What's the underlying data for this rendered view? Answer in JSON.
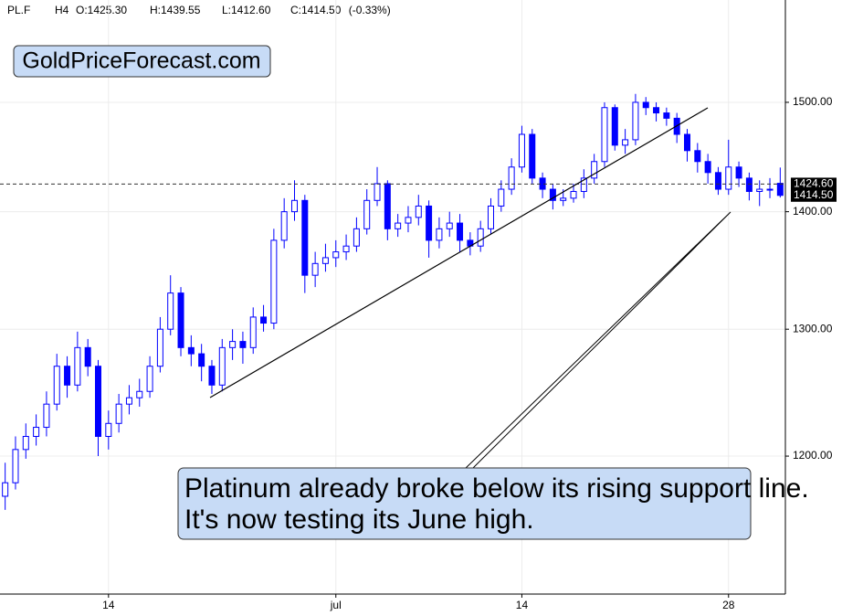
{
  "header": {
    "symbol": "PL.F",
    "timeframe": "H4",
    "open": "O:1425.30",
    "high": "H:1439.55",
    "low": "L:1412.60",
    "close": "C:1414.50",
    "change": "(-0.33%)"
  },
  "chart_data": {
    "type": "candlestick",
    "title": "GoldPriceForecast.com",
    "annotation": "Platinum already broke below its rising support line. It's now testing its June high.",
    "categories": [
      null,
      null,
      null,
      null,
      null,
      null,
      null,
      null,
      null,
      null,
      "14",
      null,
      null,
      null,
      null,
      null,
      null,
      null,
      null,
      null,
      null,
      null,
      null,
      null,
      null,
      null,
      null,
      null,
      null,
      null,
      null,
      null,
      "jul",
      null,
      null,
      null,
      null,
      null,
      null,
      null,
      null,
      null,
      null,
      null,
      null,
      null,
      null,
      null,
      null,
      null,
      "14",
      null,
      null,
      null,
      null,
      null,
      null,
      null,
      null,
      null,
      null,
      null,
      null,
      null,
      null,
      null,
      null,
      null,
      null,
      null,
      "28",
      null,
      null,
      null,
      null,
      null
    ],
    "open": [
      1170,
      1180,
      1205,
      1215,
      1222,
      1240,
      1270,
      1255,
      1285,
      1270,
      1215,
      1225,
      1240,
      1245,
      1250,
      1270,
      1300,
      1330,
      1285,
      1280,
      1270,
      1255,
      1285,
      1290,
      1285,
      1310,
      1305,
      1375,
      1400,
      1410,
      1345,
      1355,
      1360,
      1365,
      1370,
      1385,
      1410,
      1425,
      1385,
      1390,
      1395,
      1405,
      1375,
      1385,
      1390,
      1375,
      1370,
      1385,
      1405,
      1420,
      1440,
      1470,
      1430,
      1420,
      1410,
      1412,
      1418,
      1430,
      1445,
      1495,
      1460,
      1465,
      1500,
      1495,
      1490,
      1485,
      1470,
      1455,
      1445,
      1435,
      1420,
      1440,
      1430,
      1418,
      1420,
      1425.3
    ],
    "high": [
      1195,
      1215,
      1225,
      1232,
      1250,
      1280,
      1278,
      1298,
      1292,
      1275,
      1235,
      1248,
      1255,
      1260,
      1278,
      1310,
      1345,
      1335,
      1295,
      1288,
      1275,
      1292,
      1300,
      1298,
      1318,
      1320,
      1385,
      1412,
      1428,
      1415,
      1365,
      1372,
      1375,
      1380,
      1395,
      1420,
      1440,
      1428,
      1398,
      1405,
      1415,
      1410,
      1395,
      1400,
      1398,
      1382,
      1392,
      1412,
      1428,
      1448,
      1478,
      1475,
      1435,
      1425,
      1420,
      1425,
      1438,
      1452,
      1500,
      1498,
      1475,
      1508,
      1505,
      1500,
      1495,
      1490,
      1475,
      1462,
      1452,
      1440,
      1465,
      1445,
      1435,
      1428,
      1430,
      1439.55
    ],
    "low": [
      1160,
      1175,
      1198,
      1208,
      1215,
      1235,
      1245,
      1250,
      1262,
      1200,
      1205,
      1218,
      1232,
      1238,
      1245,
      1265,
      1295,
      1278,
      1270,
      1258,
      1248,
      1250,
      1275,
      1272,
      1280,
      1298,
      1300,
      1368,
      1392,
      1330,
      1335,
      1348,
      1352,
      1358,
      1365,
      1380,
      1405,
      1375,
      1378,
      1382,
      1388,
      1360,
      1368,
      1378,
      1365,
      1362,
      1365,
      1380,
      1400,
      1415,
      1435,
      1425,
      1412,
      1402,
      1405,
      1408,
      1412,
      1425,
      1440,
      1455,
      1452,
      1460,
      1488,
      1482,
      1478,
      1462,
      1445,
      1435,
      1425,
      1415,
      1415,
      1422,
      1410,
      1405,
      1412,
      1412.6
    ],
    "close": [
      1180,
      1205,
      1215,
      1222,
      1240,
      1270,
      1255,
      1285,
      1270,
      1215,
      1225,
      1240,
      1245,
      1250,
      1270,
      1300,
      1330,
      1285,
      1280,
      1270,
      1255,
      1285,
      1290,
      1285,
      1310,
      1305,
      1375,
      1400,
      1410,
      1345,
      1355,
      1360,
      1365,
      1370,
      1385,
      1410,
      1425,
      1385,
      1390,
      1395,
      1405,
      1375,
      1385,
      1390,
      1375,
      1370,
      1385,
      1405,
      1420,
      1440,
      1470,
      1430,
      1420,
      1410,
      1412,
      1418,
      1430,
      1445,
      1495,
      1460,
      1465,
      1500,
      1495,
      1490,
      1485,
      1470,
      1455,
      1445,
      1435,
      1420,
      1440,
      1430,
      1418,
      1420,
      1420,
      1414.5
    ],
    "up_color": "#ffffff",
    "down_color": "#0000ff",
    "wick_color": "#0000ff",
    "ylim": [
      1100,
      1600
    ],
    "log": true,
    "yticks": [
      {
        "value": 1200,
        "label": "1200.00"
      },
      {
        "value": 1300,
        "label": "1300.00"
      },
      {
        "value": 1400,
        "label": "1400.00"
      },
      {
        "value": 1500,
        "label": "1500.00"
      }
    ],
    "price_line": {
      "value": 1424.6,
      "label": "1424.60"
    },
    "last_price": {
      "value": 1414.5,
      "label": "1414.50"
    },
    "grid": true
  }
}
